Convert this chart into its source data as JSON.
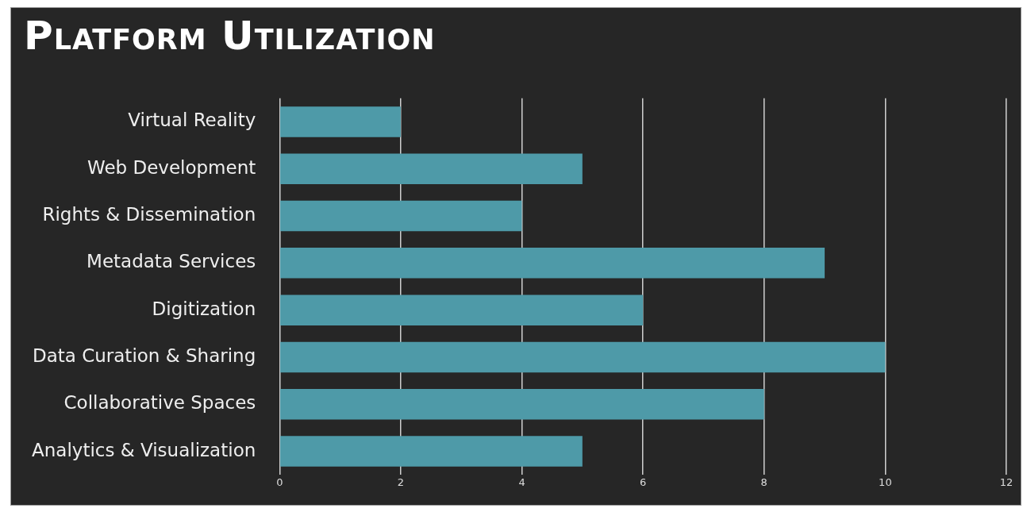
{
  "chart_data": {
    "type": "bar",
    "orientation": "horizontal",
    "title": "Platform Utilization",
    "categories": [
      "Virtual Reality",
      "Web Development",
      "Rights & Dissemination",
      "Metadata Services",
      "Digitization",
      "Data Curation & Sharing",
      "Collaborative Spaces",
      "Analytics & Visualization"
    ],
    "values": [
      2,
      5,
      4,
      9,
      6,
      10,
      8,
      5
    ],
    "color": "#4e9aa8",
    "xlim": [
      0,
      12
    ],
    "xticks": [
      0,
      2,
      4,
      6,
      8,
      10,
      12
    ],
    "grid": "x",
    "legend": false
  }
}
